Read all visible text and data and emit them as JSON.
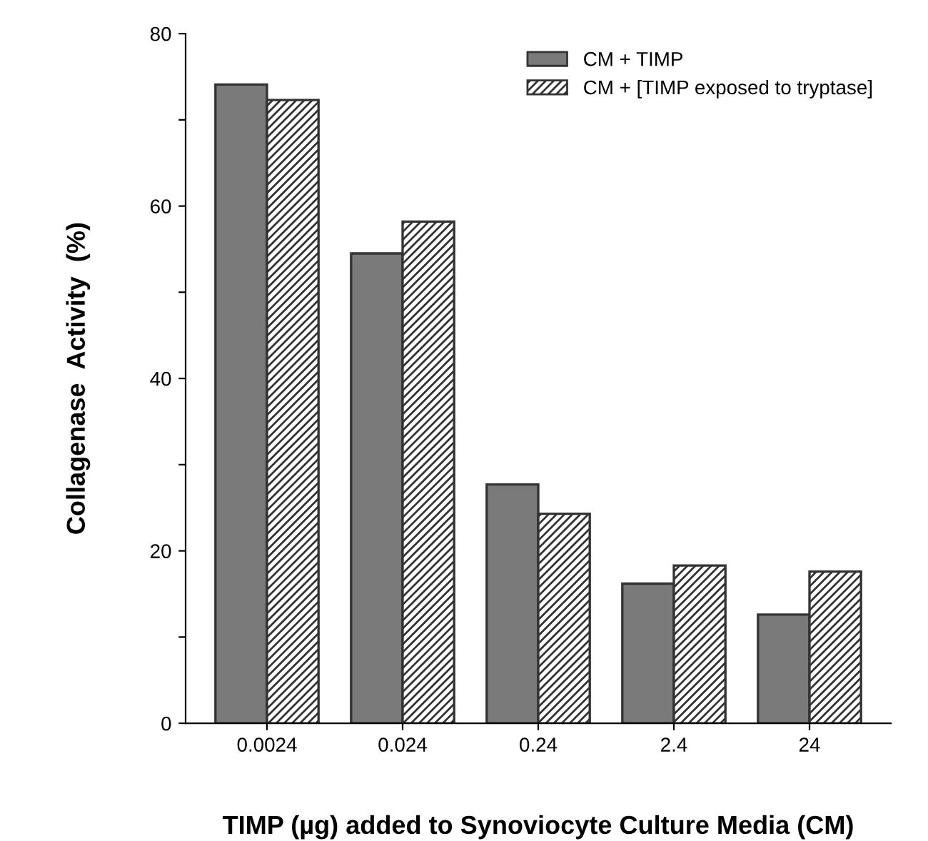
{
  "chart_data": {
    "type": "bar",
    "xlabel": "TIMP (µg) added to Synoviocyte Culture Media (CM)",
    "ylabel": "Collagenase  Activity  (%)",
    "categories": [
      "0.0024",
      "0.024",
      "0.24",
      "2.4",
      "24"
    ],
    "series": [
      {
        "name": "CM + TIMP",
        "color": "#7a7a7a",
        "values": [
          74.1,
          54.5,
          27.7,
          16.2,
          12.6
        ]
      },
      {
        "name": "CM + [TIMP exposed to tryptase]",
        "color": "#333333",
        "values": [
          72.3,
          58.2,
          24.3,
          18.3,
          17.6
        ]
      }
    ],
    "ylim": [
      0,
      80
    ],
    "yticks": [
      0,
      {
        "value": 10,
        "label": null
      },
      20,
      {
        "value": 30,
        "label": null
      },
      40,
      {
        "value": 50,
        "label": null
      },
      60,
      {
        "value": 70,
        "label": null
      },
      80
    ],
    "grid": false,
    "legend": "top right"
  }
}
